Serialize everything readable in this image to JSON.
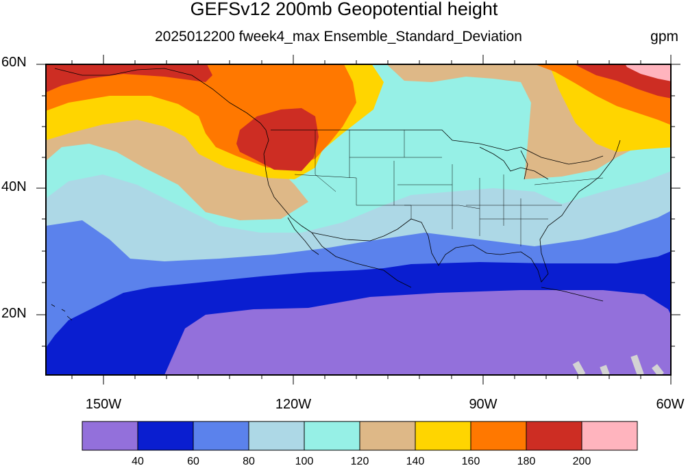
{
  "title": "GEFSv12 200mb Geopotential height",
  "subtitle": "2025012200 fweek4_max Ensemble_Standard_Deviation",
  "units": "gpm",
  "lat_labels": [
    "60N",
    "40N",
    "20N"
  ],
  "lon_labels": [
    "150W",
    "120W",
    "90W",
    "60W"
  ],
  "colorbar": {
    "labels": [
      "40",
      "60",
      "80",
      "100",
      "120",
      "140",
      "160",
      "180",
      "200"
    ],
    "colors": [
      "#9370db",
      "#0a1ed0",
      "#5b82ec",
      "#add8e6",
      "#96f0e6",
      "#deb887",
      "#ffd500",
      "#ff7800",
      "#cd2d23",
      "#ffb4be"
    ]
  },
  "colors": {
    "land_outline": "#000000",
    "missing": "#d3d3d3"
  }
}
